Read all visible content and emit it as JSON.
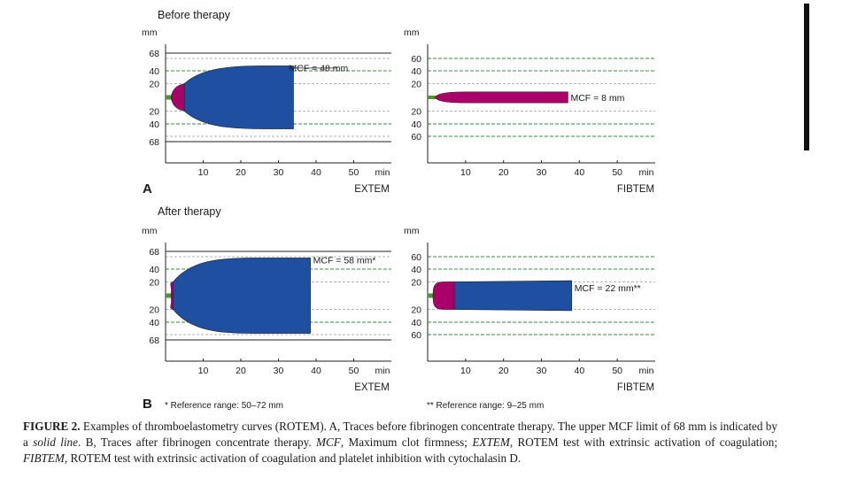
{
  "panels": {
    "before_title": "Before therapy",
    "after_title": "After therapy",
    "label_a": "A",
    "label_b": "B",
    "note_extem": "* Reference range: 50–72 mm",
    "note_fibtem": "** Reference range: 9–25 mm"
  },
  "colors": {
    "clot": "#1e4fa0",
    "clotting_time": "#a80068",
    "baseline": "#4a9a2a",
    "reference_line": "#3a8a3a",
    "limit_line": "#222222",
    "grid_line": "#9a9a9a"
  },
  "chart_data": [
    {
      "type": "area",
      "id": "extem_before",
      "test": "EXTEM",
      "ylabel": "mm",
      "xlabel": "min",
      "x_ticks": [
        10,
        20,
        30,
        40,
        50
      ],
      "xlim": [
        0,
        60
      ],
      "y_ticks_up": [
        "68",
        "40",
        "20"
      ],
      "y_ticks_down": [
        "20",
        "40",
        "68"
      ],
      "ylim": [
        -68,
        68
      ],
      "amplitude_lines": [
        20,
        40,
        60
      ],
      "limit_mm": 68,
      "clotting_time_min": 5,
      "end_min": 34,
      "mcf_mm": 48,
      "annotation": "MCF = 48 mm",
      "annotation_y": 48
    },
    {
      "type": "area",
      "id": "fibtem_before",
      "test": "FIBTEM",
      "ylabel": "mm",
      "xlabel": "min",
      "x_ticks": [
        10,
        20,
        30,
        40,
        50
      ],
      "xlim": [
        0,
        60
      ],
      "y_ticks_up": [
        "60",
        "40",
        "20"
      ],
      "y_ticks_down": [
        "20",
        "40",
        "60"
      ],
      "ylim": [
        -68,
        68
      ],
      "amplitude_lines": [
        20,
        40,
        60
      ],
      "limit_mm": null,
      "clotting_time_min": 37,
      "end_min": 37,
      "mcf_mm": 8,
      "annotation": "MCF = 8  mm",
      "annotation_y": 0
    },
    {
      "type": "area",
      "id": "extem_after",
      "test": "EXTEM",
      "ylabel": "mm",
      "xlabel": "min",
      "x_ticks": [
        10,
        20,
        30,
        40,
        50
      ],
      "xlim": [
        0,
        60
      ],
      "y_ticks_up": [
        "68",
        "40",
        "20"
      ],
      "y_ticks_down": [
        "20",
        "40",
        "68"
      ],
      "ylim": [
        -68,
        68
      ],
      "amplitude_lines": [
        20,
        40,
        60
      ],
      "limit_mm": 68,
      "clotting_time_min": 2,
      "end_min": 38.5,
      "mcf_mm": 58,
      "annotation": "MCF = 58 mm*",
      "annotation_y": 58
    },
    {
      "type": "area",
      "id": "fibtem_after",
      "test": "FIBTEM",
      "ylabel": "mm",
      "xlabel": "min",
      "x_ticks": [
        10,
        20,
        30,
        40,
        50
      ],
      "xlim": [
        0,
        60
      ],
      "y_ticks_up": [
        "60",
        "40",
        "20"
      ],
      "y_ticks_down": [
        "20",
        "40",
        "60"
      ],
      "ylim": [
        -68,
        68
      ],
      "amplitude_lines": [
        20,
        40,
        60
      ],
      "limit_mm": null,
      "clotting_time_min": 7,
      "end_min": 38,
      "mcf_mm": 22,
      "annotation": "MCF = 22 mm**",
      "annotation_y": 14
    }
  ],
  "caption": {
    "label": "FIGURE 2.",
    "t1": " Examples of thromboelastometry curves (ROTEM). A, Traces before fibrinogen concentrate therapy. The upper MCF limit of 68 mm is indicated by a ",
    "solid_line": "solid line",
    "t2": ". B, Traces after fibrinogen concentrate therapy. ",
    "mcf_abbr": "MCF",
    "t3": ", Maximum clot firmness; ",
    "extem_abbr": "EXTEM",
    "t4": ", ROTEM test with extrinsic activation of coagulation; ",
    "fibtem_abbr": "FIBTEM",
    "t5": ", ROTEM test with extrinsic activation of coagulation and platelet inhibition with cytochalasin D."
  }
}
